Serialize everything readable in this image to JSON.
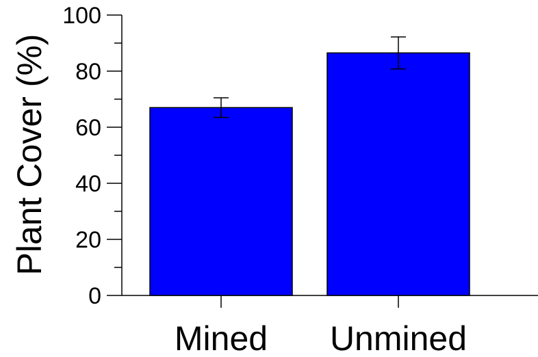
{
  "chart_data": {
    "type": "bar",
    "categories": [
      "Mined",
      "Unmined"
    ],
    "values": [
      67,
      86.5
    ],
    "error": [
      3.5,
      5.7
    ],
    "ylabel": "Plant Cover (%)",
    "xlabel": "",
    "ylim": [
      0,
      100
    ],
    "yticks": [
      "0",
      "20",
      "40",
      "60",
      "80",
      "100"
    ],
    "grid": false,
    "bar_color": "#0000ff"
  }
}
